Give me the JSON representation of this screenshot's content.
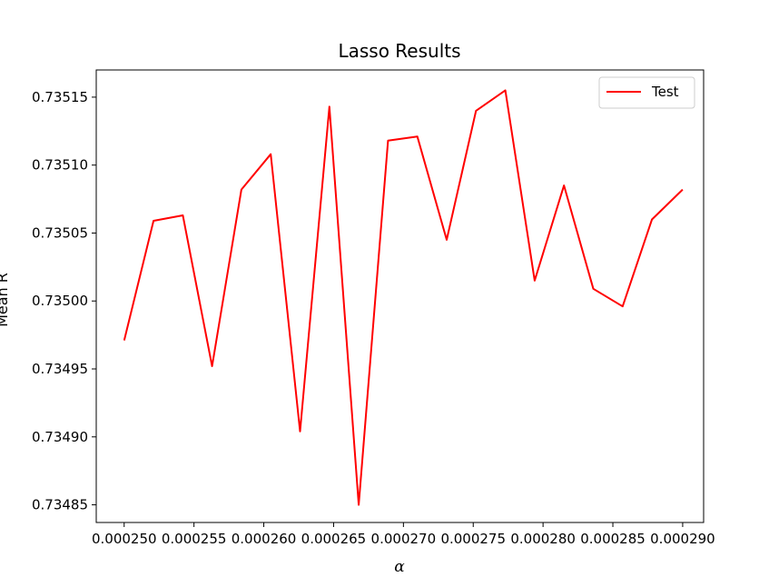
{
  "chart_data": {
    "type": "line",
    "title": "Lasso Results",
    "xlabel": "α",
    "ylabel": "Mean R",
    "xlim": [
      0.000248,
      0.0002915
    ],
    "ylim": [
      0.734837,
      0.73517
    ],
    "xticks": [
      0.00025,
      0.000255,
      0.00026,
      0.000265,
      0.00027,
      0.000275,
      0.00028,
      0.000285,
      0.00029
    ],
    "xtick_labels": [
      "0.000250",
      "0.000255",
      "0.000260",
      "0.000265",
      "0.000270",
      "0.000275",
      "0.000280",
      "0.000285",
      "0.000290"
    ],
    "yticks": [
      0.73485,
      0.7349,
      0.73495,
      0.735,
      0.73505,
      0.7351,
      0.73515
    ],
    "ytick_labels": [
      "0.73485",
      "0.73490",
      "0.73495",
      "0.73500",
      "0.73505",
      "0.73510",
      "0.73515"
    ],
    "legend_position": "top-right",
    "grid": false,
    "series": [
      {
        "name": "Test",
        "color": "#ff0000",
        "x": [
          0.00025,
          0.0002521,
          0.0002542,
          0.0002563,
          0.0002584,
          0.0002605,
          0.0002626,
          0.0002647,
          0.0002668,
          0.0002689,
          0.000271,
          0.0002731,
          0.0002752,
          0.0002773,
          0.0002794,
          0.0002815,
          0.0002836,
          0.0002857,
          0.0002878,
          0.00029
        ],
        "y": [
          0.734971,
          0.735059,
          0.735063,
          0.734952,
          0.735082,
          0.735108,
          0.734904,
          0.735143,
          0.73485,
          0.735118,
          0.735121,
          0.735045,
          0.73514,
          0.735155,
          0.735015,
          0.735085,
          0.735009,
          0.734996,
          0.73506,
          0.735082
        ]
      }
    ]
  }
}
